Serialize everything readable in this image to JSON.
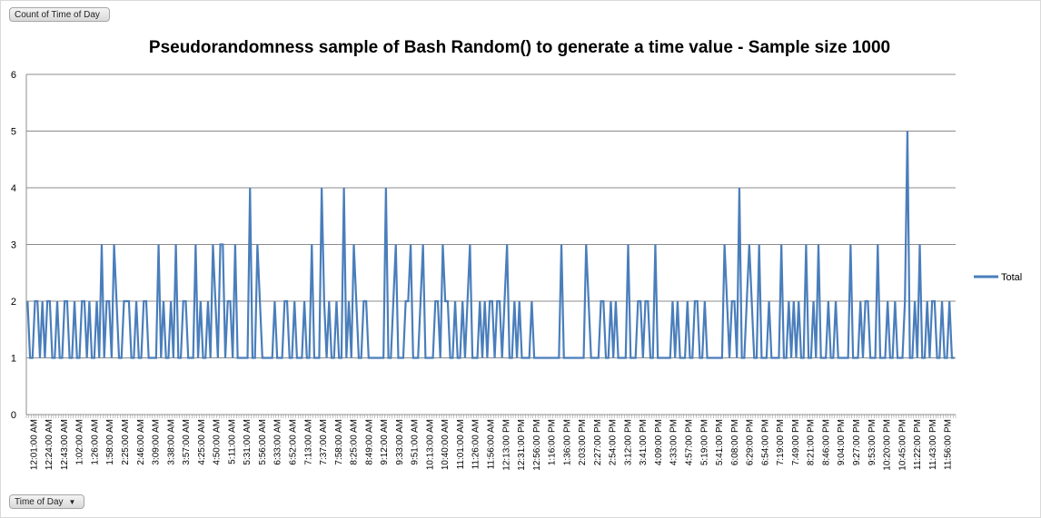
{
  "pivot_buttons": {
    "value_field": "Count of Time of Day",
    "axis_field": "Time of Day"
  },
  "chart_data": {
    "type": "line",
    "title": "Pseudorandomness sample of Bash Random() to generate a time value - Sample size 1000",
    "xlabel": "",
    "ylabel": "",
    "ylim": [
      0,
      6
    ],
    "yticks": [
      0,
      1,
      2,
      3,
      4,
      5,
      6
    ],
    "grid": true,
    "legend_position": "right",
    "colors": {
      "series": "#4a7ebb",
      "grid": "#8c8c8c",
      "axis": "#8c8c8c"
    },
    "x_tick_labels": [
      "12:01:00 AM",
      "12:24:00 AM",
      "12:43:00 AM",
      "1:02:00 AM",
      "1:26:00 AM",
      "1:58:00 AM",
      "2:25:00 AM",
      "2:46:00 AM",
      "3:09:00 AM",
      "3:38:00 AM",
      "3:57:00 AM",
      "4:25:00 AM",
      "4:50:00 AM",
      "5:11:00 AM",
      "5:31:00 AM",
      "5:56:00 AM",
      "6:33:00 AM",
      "6:52:00 AM",
      "7:13:00 AM",
      "7:37:00 AM",
      "7:58:00 AM",
      "8:25:00 AM",
      "8:49:00 AM",
      "9:12:00 AM",
      "9:33:00 AM",
      "9:51:00 AM",
      "10:13:00 AM",
      "10:40:00 AM",
      "11:01:00 AM",
      "11:26:00 AM",
      "11:56:00 AM",
      "12:13:00 PM",
      "12:31:00 PM",
      "12:56:00 PM",
      "1:16:00 PM",
      "1:36:00 PM",
      "2:03:00 PM",
      "2:27:00 PM",
      "2:54:00 PM",
      "3:12:00 PM",
      "3:41:00 PM",
      "4:09:00 PM",
      "4:33:00 PM",
      "4:57:00 PM",
      "5:19:00 PM",
      "5:41:00 PM",
      "6:08:00 PM",
      "6:29:00 PM",
      "6:54:00 PM",
      "7:19:00 PM",
      "7:49:00 PM",
      "8:21:00 PM",
      "8:46:00 PM",
      "9:04:00 PM",
      "9:27:00 PM",
      "9:53:00 PM",
      "10:20:00 PM",
      "10:45:00 PM",
      "11:22:00 PM",
      "11:43:00 PM",
      "11:56:00 PM"
    ],
    "series": [
      {
        "name": "Total",
        "values": [
          2,
          1,
          1,
          2,
          2,
          1,
          2,
          1,
          2,
          2,
          1,
          1,
          2,
          1,
          1,
          2,
          2,
          1,
          1,
          2,
          1,
          1,
          2,
          2,
          1,
          2,
          1,
          1,
          2,
          1,
          3,
          1,
          2,
          2,
          1,
          3,
          2,
          1,
          1,
          2,
          2,
          2,
          1,
          1,
          2,
          1,
          1,
          2,
          2,
          1,
          1,
          1,
          1,
          3,
          1,
          2,
          1,
          1,
          2,
          1,
          3,
          1,
          1,
          2,
          2,
          1,
          1,
          1,
          3,
          1,
          2,
          1,
          1,
          2,
          1,
          3,
          2,
          1,
          3,
          3,
          1,
          2,
          2,
          1,
          3,
          1,
          1,
          1,
          1,
          1,
          4,
          1,
          1,
          3,
          2,
          1,
          1,
          1,
          1,
          1,
          2,
          1,
          1,
          1,
          2,
          2,
          1,
          1,
          2,
          1,
          1,
          1,
          2,
          1,
          1,
          3,
          1,
          1,
          1,
          4,
          2,
          1,
          2,
          1,
          1,
          2,
          1,
          1,
          4,
          1,
          2,
          1,
          3,
          2,
          1,
          1,
          2,
          2,
          1,
          1,
          1,
          1,
          1,
          1,
          1,
          4,
          1,
          1,
          2,
          3,
          1,
          1,
          1,
          2,
          2,
          3,
          1,
          1,
          1,
          2,
          3,
          1,
          1,
          1,
          1,
          2,
          2,
          1,
          3,
          2,
          2,
          1,
          1,
          2,
          1,
          1,
          2,
          1,
          2,
          3,
          1,
          1,
          1,
          2,
          1,
          2,
          1,
          2,
          2,
          1,
          2,
          2,
          1,
          2,
          3,
          1,
          1,
          2,
          1,
          2,
          1,
          1,
          1,
          1,
          2,
          1,
          1,
          1,
          1,
          1,
          1,
          1,
          1,
          1,
          1,
          1,
          3,
          1,
          1,
          1,
          1,
          1,
          1,
          1,
          1,
          1,
          3,
          2,
          1,
          1,
          1,
          1,
          2,
          2,
          1,
          1,
          2,
          1,
          2,
          1,
          1,
          1,
          1,
          3,
          1,
          1,
          1,
          2,
          2,
          1,
          2,
          2,
          1,
          1,
          3,
          1,
          1,
          1,
          1,
          1,
          1,
          2,
          1,
          2,
          1,
          1,
          1,
          2,
          1,
          1,
          2,
          2,
          1,
          1,
          2,
          1,
          1,
          1,
          1,
          1,
          1,
          1,
          3,
          2,
          1,
          2,
          2,
          1,
          4,
          1,
          1,
          2,
          3,
          2,
          1,
          1,
          3,
          1,
          1,
          1,
          2,
          1,
          1,
          1,
          1,
          3,
          1,
          1,
          2,
          1,
          2,
          1,
          2,
          1,
          1,
          3,
          1,
          1,
          2,
          1,
          3,
          1,
          1,
          1,
          2,
          1,
          1,
          2,
          1,
          1,
          1,
          1,
          1,
          3,
          1,
          1,
          1,
          2,
          1,
          2,
          2,
          1,
          1,
          1,
          3,
          1,
          1,
          1,
          2,
          1,
          1,
          2,
          1,
          1,
          1,
          2,
          5,
          1,
          1,
          2,
          1,
          3,
          1,
          1,
          2,
          1,
          2,
          2,
          1,
          1,
          2,
          1,
          1,
          2,
          1,
          1
        ]
      }
    ]
  }
}
